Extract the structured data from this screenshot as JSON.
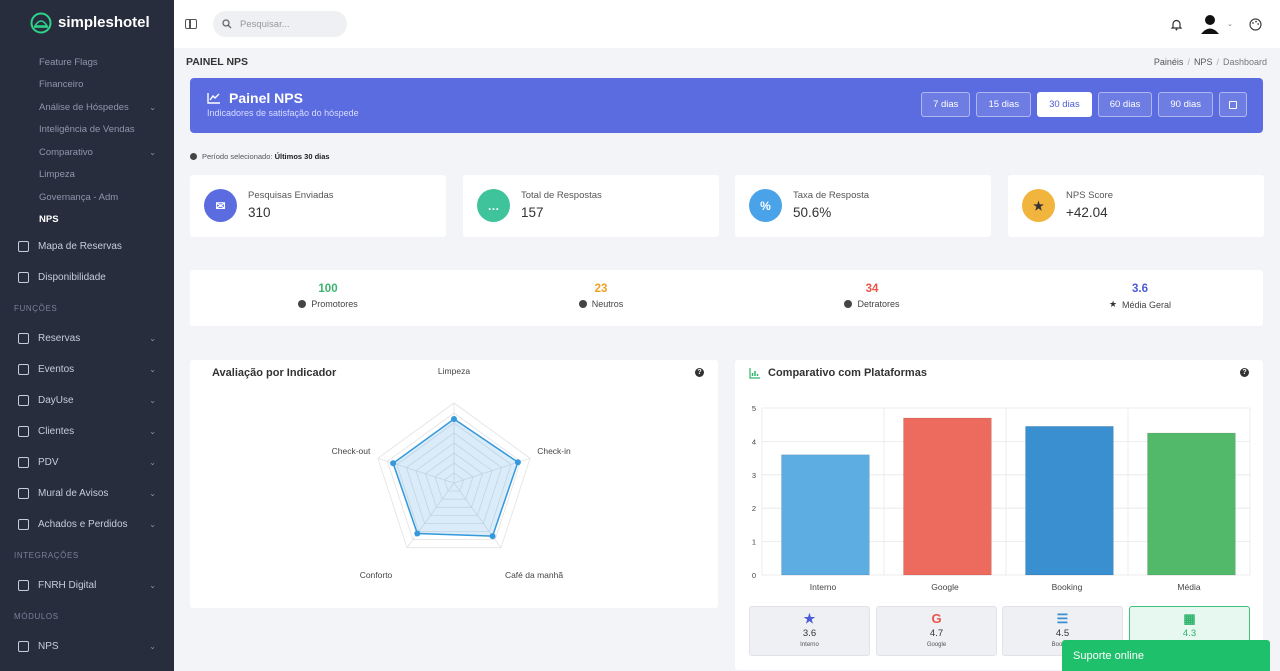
{
  "app": {
    "name": "simpleshotel"
  },
  "sidebar": {
    "sub_items": [
      {
        "label": "Feature Flags"
      },
      {
        "label": "Financeiro"
      },
      {
        "label": "Análise de Hóspedes",
        "has_chevron": true
      },
      {
        "label": "Inteligência de Vendas"
      },
      {
        "label": "Comparativo",
        "has_chevron": true
      },
      {
        "label": "Limpeza"
      },
      {
        "label": "Governança - Adm"
      },
      {
        "label": "NPS",
        "active": true
      }
    ],
    "items_top": [
      {
        "label": "Mapa de Reservas",
        "icon": "calendar-icon"
      },
      {
        "label": "Disponibilidade",
        "icon": "calendar-check-icon"
      }
    ],
    "section_funcoes": "FUNÇÕES",
    "items_funcoes": [
      {
        "label": "Reservas",
        "icon": "book-icon"
      },
      {
        "label": "Eventos",
        "icon": "glass-icon"
      },
      {
        "label": "DayUse",
        "icon": "sun-icon"
      },
      {
        "label": "Clientes",
        "icon": "user-icon"
      },
      {
        "label": "PDV",
        "icon": "cart-icon"
      },
      {
        "label": "Mural de Avisos",
        "icon": "board-icon"
      },
      {
        "label": "Achados e Perdidos",
        "icon": "megaphone-icon"
      }
    ],
    "section_integracoes": "INTEGRAÇÕES",
    "items_integracoes": [
      {
        "label": "FNRH Digital",
        "icon": "id-card-icon"
      }
    ],
    "section_modulos": "MÓDULOS",
    "items_modulos": [
      {
        "label": "NPS",
        "icon": "star-icon"
      }
    ]
  },
  "topbar": {
    "search_placeholder": "Pesquisar..."
  },
  "page": {
    "title": "PAINEL NPS",
    "breadcrumb": [
      "Painéis",
      "NPS",
      "Dashboard"
    ]
  },
  "banner": {
    "title": "Painel NPS",
    "subtitle": "Indicadores de satisfação do hóspede",
    "ranges": [
      "7 dias",
      "15 dias",
      "30 dias",
      "60 dias",
      "90 dias"
    ],
    "active_range": "30 dias"
  },
  "period": {
    "label": "Período selecionado:",
    "value": "Últimos 30 dias"
  },
  "kpis": [
    {
      "label": "Pesquisas Enviadas",
      "value": "310",
      "color": "#5b6be0",
      "icon": "envelope-icon"
    },
    {
      "label": "Total de Respostas",
      "value": "157",
      "color": "#3ec39a",
      "icon": "chat-icon"
    },
    {
      "label": "Taxa de Resposta",
      "value": "50.6%",
      "color": "#4aa3e8",
      "icon": "percent-icon"
    },
    {
      "label": "NPS Score",
      "value": "+42.04",
      "color": "#f1b43c",
      "icon": "star-icon"
    }
  ],
  "summary": [
    {
      "value": "100",
      "label": "Promotores",
      "color": "#3cb371",
      "icon": "smile-icon"
    },
    {
      "value": "23",
      "label": "Neutros",
      "color": "#f0a020",
      "icon": "neutral-face-icon"
    },
    {
      "value": "34",
      "label": "Detratores",
      "color": "#e8564a",
      "icon": "frown-icon"
    },
    {
      "value": "3.6",
      "label": "Média Geral",
      "color": "#4a5bd6",
      "icon": "star-icon"
    }
  ],
  "radar_card": {
    "title": "Avaliação por Indicador"
  },
  "bar_card": {
    "title": "Comparativo com Plataformas"
  },
  "chart_data": [
    {
      "type": "radar",
      "categories": [
        "Limpeza",
        "Check-in",
        "Café da manhã",
        "Conforto",
        "Check-out"
      ],
      "values": [
        4.0,
        4.2,
        4.1,
        3.9,
        4.0
      ],
      "rlim": [
        0,
        5
      ],
      "color": "#3498db"
    },
    {
      "type": "bar",
      "categories": [
        "Interno",
        "Google",
        "Booking",
        "Média"
      ],
      "values": [
        3.6,
        4.7,
        4.45,
        4.25
      ],
      "colors": [
        "#5dade2",
        "#ec6a5e",
        "#3a8fd0",
        "#52b96a"
      ],
      "ylim": [
        0,
        5
      ],
      "yticks": [
        0,
        1,
        2,
        3,
        4,
        5
      ],
      "grid": true
    }
  ],
  "platforms": [
    {
      "value": "3.6",
      "name": "Interno",
      "icon": "star-icon",
      "color": "#4a5bd6"
    },
    {
      "value": "4.7",
      "name": "Google",
      "icon": "google-icon",
      "color": "#e8564a"
    },
    {
      "value": "4.5",
      "name": "Booking",
      "icon": "bed-icon",
      "color": "#3a8fd0"
    },
    {
      "value": "4.3",
      "name": "",
      "icon": "calculator-icon",
      "color": "#2fb36b",
      "active": true
    }
  ],
  "support": {
    "label": "Suporte online"
  }
}
